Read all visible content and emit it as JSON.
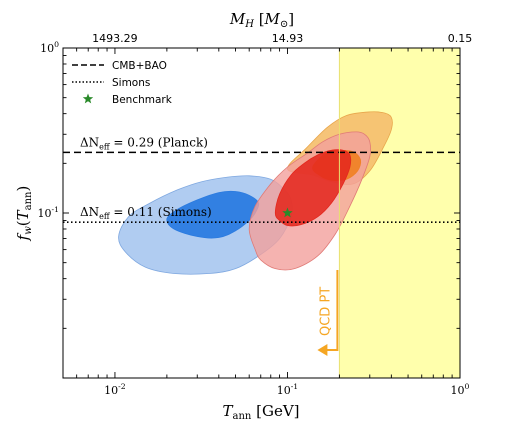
{
  "chart_data": {
    "type": "contour",
    "title": "",
    "xlabel": "T_ann [GeV]",
    "ylabel": "f_w(T_ann)",
    "x_scale": "log",
    "y_scale": "log",
    "xlim": [
      0.005,
      1.0
    ],
    "ylim": [
      0.01,
      1.0
    ],
    "x_ticks": [
      {
        "value": 0.01,
        "label": "10^-2"
      },
      {
        "value": 0.1,
        "label": "10^-1"
      },
      {
        "value": 1.0,
        "label": "10^0"
      }
    ],
    "y_ticks": [
      {
        "value": 0.1,
        "label": "10^-1"
      },
      {
        "value": 1.0,
        "label": "10^0"
      }
    ],
    "top_axis": {
      "label": "M_H [M_⊙]",
      "ticks": [
        {
          "x": 0.01,
          "label": "1493.29"
        },
        {
          "x": 0.1,
          "label": "14.93"
        },
        {
          "x": 1.0,
          "label": "0.15"
        }
      ]
    },
    "legend": {
      "placement": "top-left",
      "entries": [
        {
          "label": "CMB+BAO",
          "style": "dashed"
        },
        {
          "label": "Simons",
          "style": "dotted"
        },
        {
          "label": "Benchmark",
          "style": "star"
        }
      ]
    },
    "horizontal_lines": [
      {
        "name": "CMB+BAO",
        "y": 0.233,
        "style": "dashed",
        "annotation": "ΔN_eff = 0.29 (Planck)"
      },
      {
        "name": "Simons",
        "y": 0.088,
        "style": "dotted",
        "annotation": "ΔN_eff = 0.11 (Simons)"
      }
    ],
    "shaded_region": {
      "x_min": 0.2,
      "x_max": 1.0,
      "color": "#ffffa8"
    },
    "region_annotation": {
      "label": "QCD PT",
      "x": 0.2,
      "color": "#f5a623"
    },
    "benchmark": {
      "x": 0.1,
      "y": 0.1,
      "color": "#2a8a2a"
    },
    "contours": [
      {
        "name": "blue",
        "level": "outer",
        "color": "#a9c8f0",
        "edge": "#7fa8e0",
        "points": [
          [
            0.0105,
            0.072
          ],
          [
            0.0115,
            0.058
          ],
          [
            0.015,
            0.047
          ],
          [
            0.022,
            0.043
          ],
          [
            0.035,
            0.043
          ],
          [
            0.05,
            0.046
          ],
          [
            0.07,
            0.056
          ],
          [
            0.09,
            0.07
          ],
          [
            0.105,
            0.095
          ],
          [
            0.105,
            0.12
          ],
          [
            0.095,
            0.14
          ],
          [
            0.08,
            0.16
          ],
          [
            0.06,
            0.168
          ],
          [
            0.045,
            0.165
          ],
          [
            0.032,
            0.155
          ],
          [
            0.023,
            0.138
          ],
          [
            0.016,
            0.115
          ],
          [
            0.012,
            0.095
          ]
        ]
      },
      {
        "name": "blue",
        "level": "inner",
        "color": "#2b7be0",
        "edge": "#2b7be0",
        "points": [
          [
            0.02,
            0.092
          ],
          [
            0.022,
            0.08
          ],
          [
            0.03,
            0.072
          ],
          [
            0.04,
            0.071
          ],
          [
            0.05,
            0.078
          ],
          [
            0.06,
            0.09
          ],
          [
            0.065,
            0.1
          ],
          [
            0.068,
            0.115
          ],
          [
            0.06,
            0.128
          ],
          [
            0.05,
            0.135
          ],
          [
            0.04,
            0.133
          ],
          [
            0.03,
            0.12
          ],
          [
            0.023,
            0.105
          ]
        ]
      },
      {
        "name": "orange",
        "level": "outer",
        "color": "#f5bf6e",
        "edge": "#e8a64c",
        "points": [
          [
            0.1,
            0.185
          ],
          [
            0.13,
            0.25
          ],
          [
            0.17,
            0.33
          ],
          [
            0.22,
            0.39
          ],
          [
            0.3,
            0.41
          ],
          [
            0.36,
            0.405
          ],
          [
            0.4,
            0.38
          ],
          [
            0.4,
            0.32
          ],
          [
            0.36,
            0.25
          ],
          [
            0.3,
            0.18
          ],
          [
            0.24,
            0.15
          ],
          [
            0.18,
            0.155
          ],
          [
            0.14,
            0.17
          ]
        ]
      },
      {
        "name": "orange",
        "level": "inner",
        "color": "#f08226",
        "edge": "#f08226",
        "points": [
          [
            0.14,
            0.19
          ],
          [
            0.17,
            0.235
          ],
          [
            0.2,
            0.24
          ],
          [
            0.24,
            0.235
          ],
          [
            0.265,
            0.21
          ],
          [
            0.255,
            0.18
          ],
          [
            0.22,
            0.16
          ],
          [
            0.18,
            0.158
          ],
          [
            0.155,
            0.168
          ]
        ]
      },
      {
        "name": "red",
        "level": "outer",
        "color": "#f2a09c",
        "edge": "#e07a76",
        "points": [
          [
            0.065,
            0.06
          ],
          [
            0.06,
            0.08
          ],
          [
            0.065,
            0.11
          ],
          [
            0.08,
            0.15
          ],
          [
            0.1,
            0.19
          ],
          [
            0.13,
            0.23
          ],
          [
            0.16,
            0.27
          ],
          [
            0.2,
            0.3
          ],
          [
            0.25,
            0.31
          ],
          [
            0.28,
            0.3
          ],
          [
            0.3,
            0.27
          ],
          [
            0.3,
            0.22
          ],
          [
            0.27,
            0.16
          ],
          [
            0.23,
            0.11
          ],
          [
            0.19,
            0.075
          ],
          [
            0.15,
            0.055
          ],
          [
            0.11,
            0.046
          ],
          [
            0.085,
            0.046
          ],
          [
            0.07,
            0.052
          ]
        ]
      },
      {
        "name": "red",
        "level": "inner",
        "color": "#e4281e",
        "edge": "#e4281e",
        "points": [
          [
            0.09,
            0.09
          ],
          [
            0.085,
            0.1
          ],
          [
            0.09,
            0.13
          ],
          [
            0.105,
            0.17
          ],
          [
            0.125,
            0.2
          ],
          [
            0.15,
            0.225
          ],
          [
            0.18,
            0.24
          ],
          [
            0.21,
            0.24
          ],
          [
            0.23,
            0.225
          ],
          [
            0.23,
            0.19
          ],
          [
            0.21,
            0.15
          ],
          [
            0.18,
            0.115
          ],
          [
            0.15,
            0.095
          ],
          [
            0.12,
            0.085
          ],
          [
            0.1,
            0.084
          ]
        ]
      }
    ]
  }
}
